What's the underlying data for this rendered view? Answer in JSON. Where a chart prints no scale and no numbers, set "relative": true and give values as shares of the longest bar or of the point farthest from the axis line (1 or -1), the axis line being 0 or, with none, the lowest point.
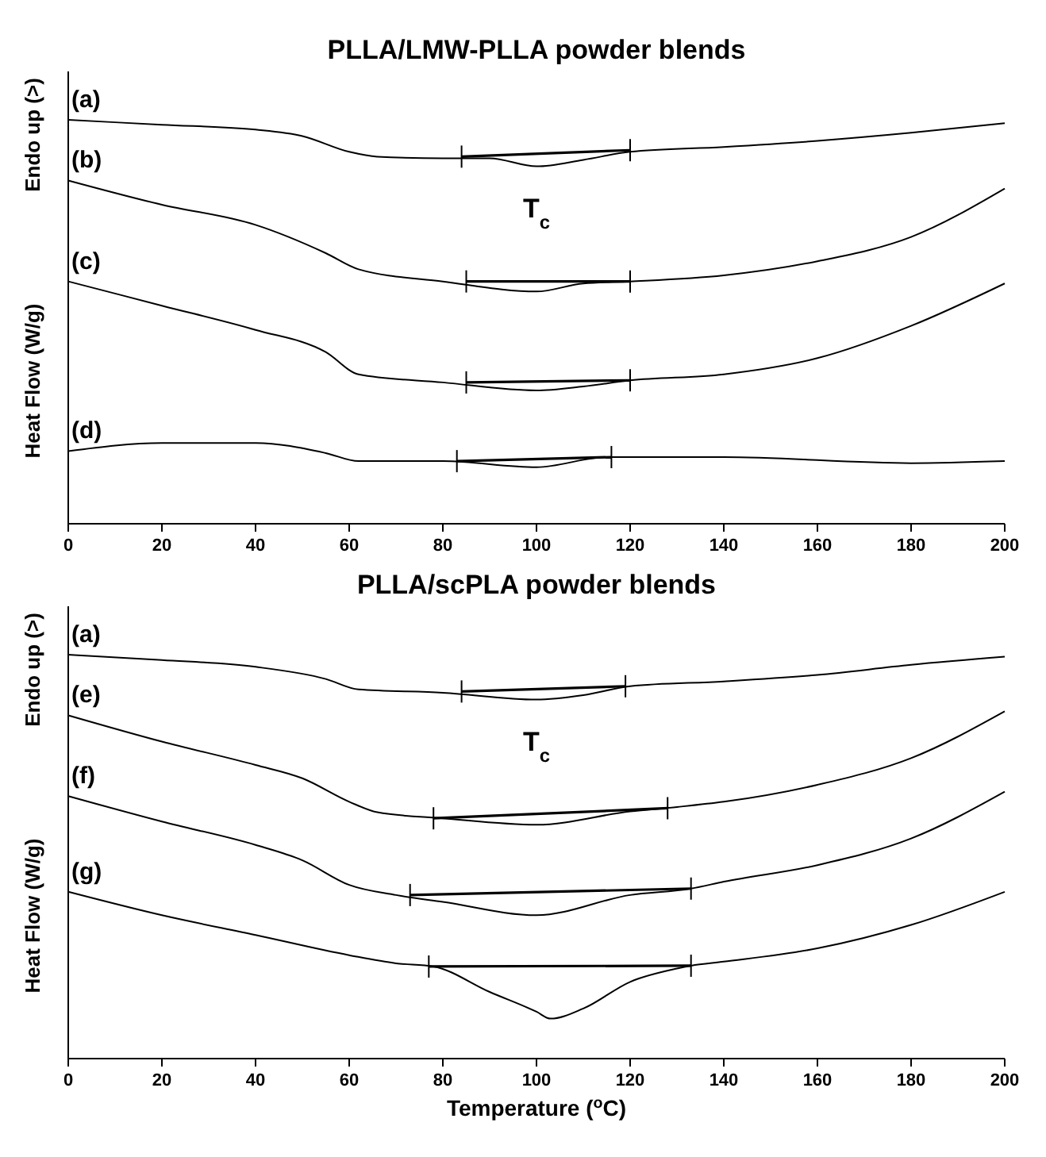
{
  "chart_data": [
    {
      "type": "line",
      "title": "PLLA/LMW-PLLA powder blends",
      "ylabel": "Heat Flow (W/g)",
      "relative": true,
      "xlim": [
        0,
        200
      ],
      "xticks": [
        0,
        20,
        40,
        60,
        80,
        100,
        120,
        140,
        160,
        180,
        200
      ],
      "grid": false,
      "line_style": "solid",
      "marker": "none",
      "annotations": [
        "Endo up (>)",
        {
          "text": "T$_{c}$",
          "x": 100,
          "y": 0.885
        }
      ],
      "series": [
        {
          "name": "(a)",
          "color": "#000000",
          "x": [
            0,
            20,
            40,
            50,
            60,
            66,
            80,
            90,
            100,
            110,
            120,
            140,
            160,
            180,
            200
          ],
          "values": [
            1.0,
            0.988,
            0.976,
            0.96,
            0.921,
            0.909,
            0.905,
            0.905,
            0.885,
            0.901,
            0.921,
            0.933,
            0.948,
            0.968,
            0.992
          ]
        },
        {
          "color": "#000000",
          "x": [
            84,
            120
          ],
          "values": [
            0.909,
            0.925
          ]
        },
        {
          "name": "(b)",
          "color": "#000000",
          "x": [
            0,
            20,
            40,
            55,
            62,
            80,
            100,
            110,
            120,
            140,
            160,
            180,
            200
          ],
          "values": [
            0.85,
            0.79,
            0.74,
            0.67,
            0.63,
            0.6,
            0.575,
            0.595,
            0.6,
            0.615,
            0.65,
            0.71,
            0.83
          ]
        },
        {
          "color": "#000000",
          "x": [
            85,
            120
          ],
          "values": [
            0.6,
            0.6
          ]
        },
        {
          "name": "(c)",
          "color": "#000000",
          "x": [
            0,
            20,
            40,
            55,
            62,
            80,
            100,
            110,
            120,
            140,
            160,
            180,
            200
          ],
          "values": [
            0.6,
            0.54,
            0.48,
            0.425,
            0.37,
            0.35,
            0.33,
            0.34,
            0.355,
            0.37,
            0.41,
            0.49,
            0.595
          ]
        },
        {
          "color": "#000000",
          "x": [
            85,
            120
          ],
          "values": [
            0.35,
            0.355
          ]
        },
        {
          "name": "(d)",
          "color": "#000000",
          "x": [
            0,
            20,
            40,
            55,
            62,
            80,
            100,
            115,
            140,
            180,
            200
          ],
          "values": [
            0.18,
            0.2,
            0.2,
            0.175,
            0.155,
            0.155,
            0.14,
            0.165,
            0.165,
            0.15,
            0.155
          ]
        },
        {
          "color": "#000000",
          "x": [
            83,
            116
          ],
          "values": [
            0.155,
            0.165
          ]
        }
      ]
    },
    {
      "type": "line",
      "title": "PLLA/scPLA powder blends",
      "xlabel": "Temperature ($^{o}$C)",
      "ylabel": "Heat Flow (W/g)",
      "relative": true,
      "xlim": [
        0,
        200
      ],
      "xticks": [
        0,
        20,
        40,
        60,
        80,
        100,
        120,
        140,
        160,
        180,
        200
      ],
      "grid": false,
      "line_style": "solid",
      "marker": "none",
      "annotations": [
        "Endo up (>)",
        {
          "text": "T$_{c}$",
          "x": 100,
          "y": 0.889
        }
      ],
      "series": [
        {
          "name": "(a)",
          "color": "#000000",
          "x": [
            0,
            20,
            40,
            55,
            62,
            80,
            100,
            110,
            120,
            140,
            160,
            180,
            200
          ],
          "values": [
            1.0,
            0.987,
            0.97,
            0.94,
            0.914,
            0.906,
            0.889,
            0.9,
            0.922,
            0.934,
            0.95,
            0.975,
            0.995
          ]
        },
        {
          "color": "#000000",
          "x": [
            84,
            119
          ],
          "values": [
            0.909,
            0.922
          ]
        },
        {
          "name": "(e)",
          "color": "#000000",
          "x": [
            0,
            20,
            40,
            50,
            60,
            66,
            80,
            100,
            120,
            130,
            140,
            160,
            180,
            200
          ],
          "values": [
            0.85,
            0.785,
            0.727,
            0.694,
            0.636,
            0.61,
            0.595,
            0.579,
            0.612,
            0.623,
            0.636,
            0.678,
            0.744,
            0.86
          ]
        },
        {
          "color": "#000000",
          "x": [
            78,
            128
          ],
          "values": [
            0.595,
            0.62
          ]
        },
        {
          "name": "(f)",
          "color": "#000000",
          "x": [
            0,
            20,
            40,
            50,
            60,
            70,
            80,
            100,
            120,
            133,
            140,
            160,
            180,
            200
          ],
          "values": [
            0.65,
            0.587,
            0.529,
            0.491,
            0.43,
            0.405,
            0.388,
            0.355,
            0.405,
            0.421,
            0.438,
            0.479,
            0.545,
            0.661
          ]
        },
        {
          "color": "#000000",
          "x": [
            73,
            133
          ],
          "values": [
            0.405,
            0.421
          ]
        },
        {
          "name": "(g)",
          "color": "#000000",
          "x": [
            0,
            20,
            40,
            60,
            70,
            78,
            90,
            100,
            103,
            110,
            120,
            130,
            133,
            140,
            160,
            180,
            200
          ],
          "values": [
            0.413,
            0.355,
            0.306,
            0.256,
            0.236,
            0.228,
            0.165,
            0.116,
            0.099,
            0.124,
            0.19,
            0.223,
            0.23,
            0.24,
            0.273,
            0.331,
            0.413
          ]
        },
        {
          "color": "#000000",
          "x": [
            77,
            133
          ],
          "values": [
            0.228,
            0.23
          ]
        }
      ]
    }
  ]
}
